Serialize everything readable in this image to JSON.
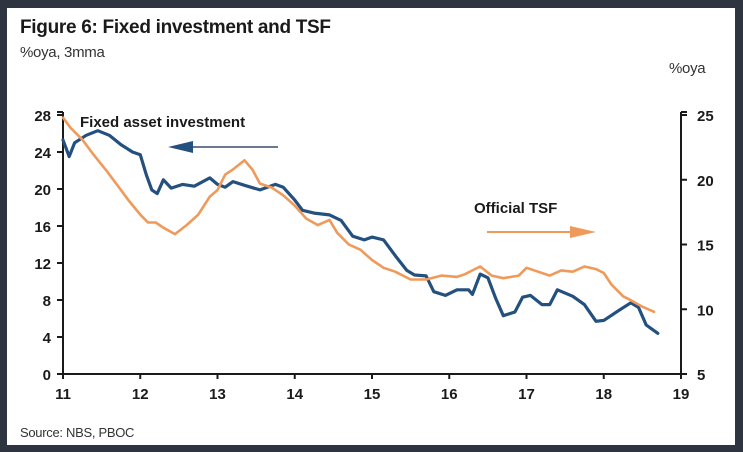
{
  "chart_data": {
    "type": "line",
    "title": "Figure 6: Fixed investment and TSF",
    "ylabel_left": "%oya, 3mma",
    "ylabel_right": "%oya",
    "source": "Source: NBS, PBOC",
    "x_ticks": [
      "11",
      "12",
      "13",
      "14",
      "15",
      "16",
      "17",
      "18",
      "19"
    ],
    "x_range": [
      2011,
      2019
    ],
    "y_left": {
      "range": [
        0,
        28
      ],
      "ticks": [
        0,
        4,
        8,
        12,
        16,
        20,
        24,
        28
      ]
    },
    "y_right": {
      "range": [
        5,
        25
      ],
      "ticks": [
        5,
        10,
        15,
        20,
        25
      ]
    },
    "grid": false,
    "series": [
      {
        "name": "Fixed asset investment",
        "axis": "left",
        "color": "#24507f",
        "annotation_arrow": "left",
        "x": [
          2011.0,
          2011.08,
          2011.15,
          2011.3,
          2011.45,
          2011.6,
          2011.75,
          2011.9,
          2012.0,
          2012.08,
          2012.15,
          2012.22,
          2012.3,
          2012.4,
          2012.55,
          2012.7,
          2012.9,
          2013.0,
          2013.1,
          2013.2,
          2013.35,
          2013.55,
          2013.75,
          2013.85,
          2014.0,
          2014.1,
          2014.25,
          2014.45,
          2014.6,
          2014.75,
          2014.9,
          2015.0,
          2015.15,
          2015.3,
          2015.45,
          2015.55,
          2015.7,
          2015.8,
          2015.95,
          2016.1,
          2016.25,
          2016.3,
          2016.4,
          2016.5,
          2016.6,
          2016.7,
          2016.85,
          2016.95,
          2017.05,
          2017.2,
          2017.3,
          2017.4,
          2017.6,
          2017.75,
          2017.9,
          2018.0,
          2018.2,
          2018.35,
          2018.45,
          2018.55,
          2018.7
        ],
        "values": [
          25.3,
          23.5,
          25.0,
          25.8,
          26.3,
          25.8,
          24.8,
          24.0,
          23.7,
          21.5,
          19.9,
          19.5,
          21.0,
          20.1,
          20.5,
          20.3,
          21.2,
          20.5,
          20.2,
          20.8,
          20.4,
          19.9,
          20.5,
          20.2,
          18.8,
          17.7,
          17.4,
          17.2,
          16.6,
          14.9,
          14.5,
          14.8,
          14.5,
          12.8,
          11.2,
          10.7,
          10.6,
          8.9,
          8.5,
          9.1,
          9.1,
          8.6,
          10.8,
          10.4,
          8.2,
          6.3,
          6.7,
          8.3,
          8.5,
          7.5,
          7.5,
          9.1,
          8.4,
          7.5,
          5.7,
          5.8,
          6.9,
          7.7,
          7.2,
          5.3,
          4.4
        ]
      },
      {
        "name": "Official TSF",
        "axis": "right",
        "color": "#ef9a5a",
        "annotation_arrow": "right",
        "x": [
          2011.0,
          2011.1,
          2011.25,
          2011.4,
          2011.55,
          2011.7,
          2011.85,
          2012.0,
          2012.1,
          2012.2,
          2012.3,
          2012.45,
          2012.6,
          2012.75,
          2012.9,
          2013.0,
          2013.1,
          2013.2,
          2013.35,
          2013.45,
          2013.55,
          2013.7,
          2013.85,
          2014.0,
          2014.15,
          2014.3,
          2014.45,
          2014.55,
          2014.7,
          2014.85,
          2015.0,
          2015.15,
          2015.3,
          2015.5,
          2015.7,
          2015.9,
          2016.1,
          2016.2,
          2016.3,
          2016.4,
          2016.55,
          2016.7,
          2016.9,
          2017.0,
          2017.15,
          2017.3,
          2017.45,
          2017.6,
          2017.75,
          2017.9,
          2018.0,
          2018.1,
          2018.25,
          2018.35,
          2018.5,
          2018.65
        ],
        "values": [
          24.8,
          24.0,
          23.1,
          21.9,
          20.8,
          19.6,
          18.4,
          17.3,
          16.7,
          16.7,
          16.3,
          15.8,
          16.5,
          17.3,
          18.7,
          19.2,
          20.4,
          20.8,
          21.5,
          20.8,
          19.7,
          19.4,
          18.8,
          18.0,
          17.0,
          16.5,
          16.9,
          15.9,
          15.0,
          14.6,
          13.8,
          13.2,
          12.9,
          12.3,
          12.3,
          12.6,
          12.5,
          12.7,
          13.0,
          13.3,
          12.6,
          12.4,
          12.6,
          13.2,
          12.9,
          12.6,
          13.0,
          12.9,
          13.3,
          13.1,
          12.8,
          11.9,
          11.0,
          10.7,
          10.2,
          9.8
        ]
      }
    ]
  }
}
